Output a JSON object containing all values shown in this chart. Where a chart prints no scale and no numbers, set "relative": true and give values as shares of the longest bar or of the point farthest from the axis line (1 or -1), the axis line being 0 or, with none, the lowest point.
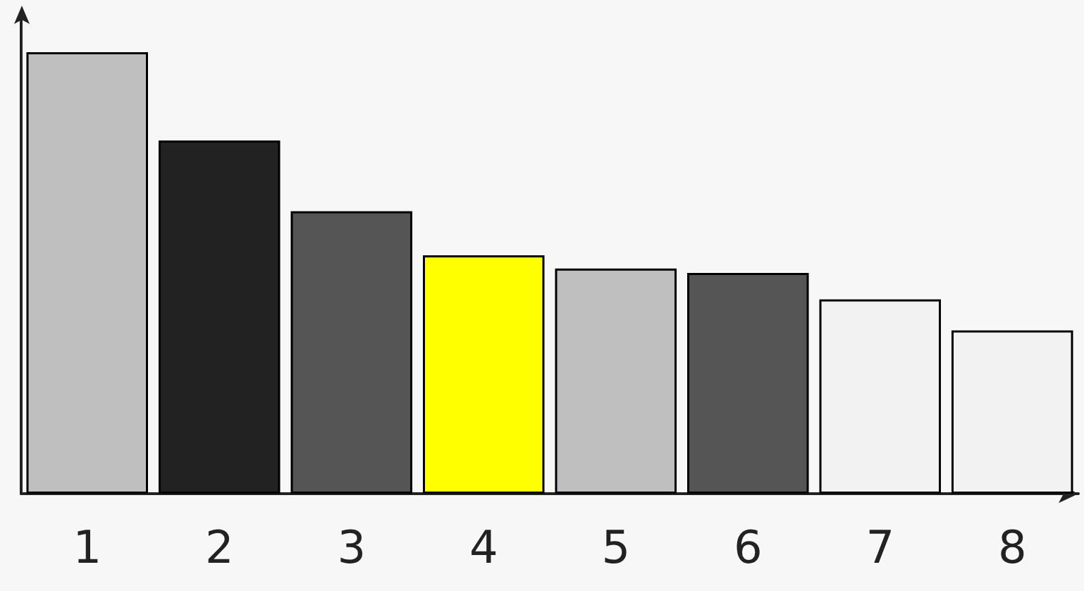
{
  "chart_data": {
    "type": "bar",
    "relative": true,
    "categories": [
      "1",
      "2",
      "3",
      "4",
      "5",
      "6",
      "7",
      "8"
    ],
    "values": [
      1,
      0.8,
      0.64,
      0.54,
      0.51,
      0.5,
      0.44,
      0.37
    ],
    "colors": [
      "#bfbfbf",
      "#222222",
      "#555555",
      "#ffff00",
      "#bfbfbf",
      "#555555",
      "#f2f2f2",
      "#f2f2f2"
    ],
    "grid": false
  }
}
